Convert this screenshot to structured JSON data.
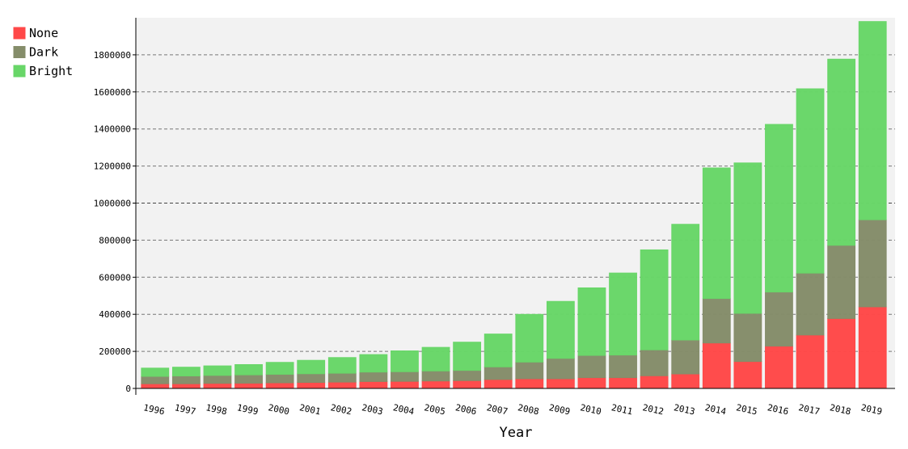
{
  "chart_data": {
    "type": "bar",
    "stacked": true,
    "xlabel": "Year",
    "ylabel": "",
    "ylim": [
      0,
      2000000
    ],
    "yticks": [
      0,
      200000,
      400000,
      600000,
      800000,
      1000000,
      1200000,
      1400000,
      1600000,
      1800000
    ],
    "grid": true,
    "legend_position": "top-left",
    "categories": [
      "1996",
      "1997",
      "1998",
      "1999",
      "2000",
      "2001",
      "2002",
      "2003",
      "2004",
      "2005",
      "2006",
      "2007",
      "2008",
      "2009",
      "2010",
      "2011",
      "2012",
      "2013",
      "2014",
      "2015",
      "2016",
      "2017",
      "2018",
      "2019"
    ],
    "series": [
      {
        "name": "None",
        "color": "#ff4848",
        "values": [
          25000,
          25000,
          27000,
          28000,
          30000,
          32000,
          34000,
          37000,
          38000,
          40000,
          42000,
          48000,
          52000,
          52000,
          58000,
          58000,
          68000,
          78000,
          245000,
          145000,
          228000,
          288000,
          377000,
          440000
        ]
      },
      {
        "name": "Dark",
        "color": "#858d6a",
        "values": [
          40000,
          42000,
          43000,
          45000,
          46000,
          47000,
          48000,
          51000,
          52000,
          54000,
          55000,
          68000,
          90000,
          110000,
          120000,
          122000,
          140000,
          183000,
          240000,
          260000,
          292000,
          334000,
          395000,
          470000
        ]
      },
      {
        "name": "Bright",
        "color": "#68d668",
        "values": [
          45000,
          48000,
          52000,
          56000,
          65000,
          73000,
          85000,
          95000,
          113000,
          128000,
          153000,
          178000,
          258000,
          308000,
          365000,
          443000,
          540000,
          625000,
          705000,
          812000,
          905000,
          995000,
          1005000,
          1070000
        ]
      }
    ]
  }
}
